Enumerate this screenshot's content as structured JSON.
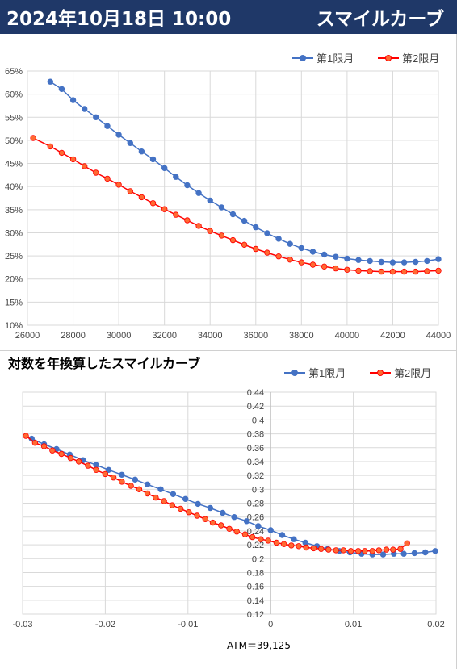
{
  "header": {
    "date": "2024年10月18日 10:00",
    "title": "スマイルカーブ"
  },
  "colors": {
    "header_bg": "#1f3868",
    "series1": "#4472c4",
    "series2": "#ff0000",
    "series2_fill": "#ff6a33"
  },
  "chart_data": [
    {
      "type": "line",
      "title": "",
      "legend_position": "top-right",
      "grid": true,
      "xlim": [
        26000,
        44000
      ],
      "ylim": [
        0.1,
        0.65
      ],
      "x_ticks": [
        "26000",
        "28000",
        "30000",
        "32000",
        "34000",
        "36000",
        "38000",
        "40000",
        "42000",
        "44000"
      ],
      "y_ticks": [
        "10%",
        "15%",
        "20%",
        "25%",
        "30%",
        "35%",
        "40%",
        "45%",
        "50%",
        "55%",
        "60%",
        "65%"
      ],
      "x_tick_values": [
        26000,
        28000,
        30000,
        32000,
        34000,
        36000,
        38000,
        40000,
        42000,
        44000
      ],
      "y_tick_values": [
        0.1,
        0.15,
        0.2,
        0.25,
        0.3,
        0.35,
        0.4,
        0.45,
        0.5,
        0.55,
        0.6,
        0.65
      ],
      "series": [
        {
          "name": "第1限月",
          "points": [
            [
              27000,
              0.627
            ],
            [
              27500,
              0.611
            ],
            [
              28000,
              0.587
            ],
            [
              28500,
              0.568
            ],
            [
              29000,
              0.55
            ],
            [
              29500,
              0.531
            ],
            [
              30000,
              0.512
            ],
            [
              30500,
              0.494
            ],
            [
              31000,
              0.476
            ],
            [
              31500,
              0.459
            ],
            [
              32000,
              0.44
            ],
            [
              32500,
              0.421
            ],
            [
              33000,
              0.403
            ],
            [
              33500,
              0.386
            ],
            [
              34000,
              0.37
            ],
            [
              34500,
              0.355
            ],
            [
              35000,
              0.34
            ],
            [
              35500,
              0.326
            ],
            [
              36000,
              0.312
            ],
            [
              36500,
              0.299
            ],
            [
              37000,
              0.287
            ],
            [
              37500,
              0.276
            ],
            [
              38000,
              0.267
            ],
            [
              38500,
              0.259
            ],
            [
              39000,
              0.253
            ],
            [
              39500,
              0.248
            ],
            [
              40000,
              0.244
            ],
            [
              40500,
              0.241
            ],
            [
              41000,
              0.239
            ],
            [
              41500,
              0.237
            ],
            [
              42000,
              0.236
            ],
            [
              42500,
              0.236
            ],
            [
              43000,
              0.237
            ],
            [
              43500,
              0.239
            ],
            [
              44000,
              0.243
            ]
          ]
        },
        {
          "name": "第2限月",
          "points": [
            [
              26250,
              0.505
            ],
            [
              27000,
              0.487
            ],
            [
              27500,
              0.473
            ],
            [
              28000,
              0.459
            ],
            [
              28500,
              0.444
            ],
            [
              29000,
              0.43
            ],
            [
              29500,
              0.417
            ],
            [
              30000,
              0.404
            ],
            [
              30500,
              0.39
            ],
            [
              31000,
              0.377
            ],
            [
              31500,
              0.364
            ],
            [
              32000,
              0.351
            ],
            [
              32500,
              0.339
            ],
            [
              33000,
              0.327
            ],
            [
              33500,
              0.315
            ],
            [
              34000,
              0.304
            ],
            [
              34500,
              0.294
            ],
            [
              35000,
              0.284
            ],
            [
              35500,
              0.274
            ],
            [
              36000,
              0.265
            ],
            [
              36500,
              0.257
            ],
            [
              37000,
              0.249
            ],
            [
              37500,
              0.242
            ],
            [
              38000,
              0.236
            ],
            [
              38500,
              0.231
            ],
            [
              39000,
              0.227
            ],
            [
              39500,
              0.223
            ],
            [
              40000,
              0.22
            ],
            [
              40500,
              0.218
            ],
            [
              41000,
              0.217
            ],
            [
              41500,
              0.216
            ],
            [
              42000,
              0.216
            ],
            [
              42500,
              0.216
            ],
            [
              43000,
              0.216
            ],
            [
              43500,
              0.217
            ],
            [
              44000,
              0.218
            ]
          ]
        }
      ]
    },
    {
      "type": "line",
      "title": "対数を年換算したスマイルカーブ",
      "xlabel": "ATM＝39,125",
      "legend_position": "top-right",
      "grid": true,
      "xlim": [
        -0.03,
        0.02
      ],
      "ylim": [
        0.12,
        0.44
      ],
      "x_ticks": [
        "-0.03",
        "-0.02",
        "-0.01",
        "0",
        "0.01",
        "0.02"
      ],
      "y_ticks": [
        "0.12",
        "0.14",
        "0.16",
        "0.18",
        "0.2",
        "0.22",
        "0.24",
        "0.26",
        "0.28",
        "0.3",
        "0.32",
        "0.34",
        "0.36",
        "0.38",
        "0.4",
        "0.42",
        "0.44"
      ],
      "x_tick_values": [
        -0.03,
        -0.02,
        -0.01,
        0,
        0.01,
        0.02
      ],
      "y_tick_values": [
        0.12,
        0.14,
        0.16,
        0.18,
        0.2,
        0.22,
        0.24,
        0.26,
        0.28,
        0.3,
        0.32,
        0.34,
        0.36,
        0.38,
        0.4,
        0.42,
        0.44
      ],
      "series": [
        {
          "name": "第1限月",
          "points": [
            [
              -0.0289,
              0.373
            ],
            [
              -0.0274,
              0.365
            ],
            [
              -0.0259,
              0.358
            ],
            [
              -0.0243,
              0.35
            ],
            [
              -0.0227,
              0.342
            ],
            [
              -0.0211,
              0.335
            ],
            [
              -0.0196,
              0.328
            ],
            [
              -0.018,
              0.321
            ],
            [
              -0.0164,
              0.314
            ],
            [
              -0.0149,
              0.307
            ],
            [
              -0.0133,
              0.3
            ],
            [
              -0.0118,
              0.293
            ],
            [
              -0.0103,
              0.286
            ],
            [
              -0.0088,
              0.279
            ],
            [
              -0.0073,
              0.273
            ],
            [
              -0.0058,
              0.266
            ],
            [
              -0.0044,
              0.26
            ],
            [
              -0.0029,
              0.254
            ],
            [
              -0.0015,
              0.247
            ],
            [
              0,
              0.241
            ],
            [
              0.0014,
              0.234
            ],
            [
              0.0028,
              0.228
            ],
            [
              0.0042,
              0.223
            ],
            [
              0.0056,
              0.218
            ],
            [
              0.0069,
              0.214
            ],
            [
              0.0083,
              0.211
            ],
            [
              0.0096,
              0.209
            ],
            [
              0.011,
              0.207
            ],
            [
              0.0123,
              0.206
            ],
            [
              0.0136,
              0.206
            ],
            [
              0.0149,
              0.207
            ],
            [
              0.0161,
              0.207
            ],
            [
              0.0174,
              0.208
            ],
            [
              0.0187,
              0.209
            ],
            [
              0.0199,
              0.211
            ]
          ]
        },
        {
          "name": "第2限月",
          "points": [
            [
              -0.0296,
              0.377
            ],
            [
              -0.0285,
              0.367
            ],
            [
              -0.0274,
              0.362
            ],
            [
              -0.0264,
              0.356
            ],
            [
              -0.0253,
              0.351
            ],
            [
              -0.0242,
              0.345
            ],
            [
              -0.0232,
              0.34
            ],
            [
              -0.0221,
              0.334
            ],
            [
              -0.0211,
              0.328
            ],
            [
              -0.02,
              0.322
            ],
            [
              -0.019,
              0.317
            ],
            [
              -0.018,
              0.311
            ],
            [
              -0.0169,
              0.305
            ],
            [
              -0.0159,
              0.3
            ],
            [
              -0.0149,
              0.294
            ],
            [
              -0.0139,
              0.288
            ],
            [
              -0.0129,
              0.283
            ],
            [
              -0.0119,
              0.277
            ],
            [
              -0.0109,
              0.272
            ],
            [
              -0.0099,
              0.267
            ],
            [
              -0.0089,
              0.262
            ],
            [
              -0.0079,
              0.257
            ],
            [
              -0.007,
              0.252
            ],
            [
              -0.006,
              0.248
            ],
            [
              -0.005,
              0.243
            ],
            [
              -0.0041,
              0.239
            ],
            [
              -0.0031,
              0.235
            ],
            [
              -0.0022,
              0.231
            ],
            [
              -0.0012,
              0.228
            ],
            [
              -0.0003,
              0.226
            ],
            [
              0.0007,
              0.223
            ],
            [
              0.0016,
              0.221
            ],
            [
              0.0025,
              0.219
            ],
            [
              0.0034,
              0.218
            ],
            [
              0.0043,
              0.216
            ],
            [
              0.0052,
              0.215
            ],
            [
              0.0061,
              0.214
            ],
            [
              0.007,
              0.213
            ],
            [
              0.0079,
              0.212
            ],
            [
              0.0088,
              0.212
            ],
            [
              0.0097,
              0.211
            ],
            [
              0.0106,
              0.211
            ],
            [
              0.0114,
              0.211
            ],
            [
              0.0123,
              0.211
            ],
            [
              0.0131,
              0.212
            ],
            [
              0.014,
              0.213
            ],
            [
              0.0148,
              0.213
            ],
            [
              0.0157,
              0.214
            ],
            [
              0.0165,
              0.222
            ]
          ]
        }
      ]
    }
  ]
}
